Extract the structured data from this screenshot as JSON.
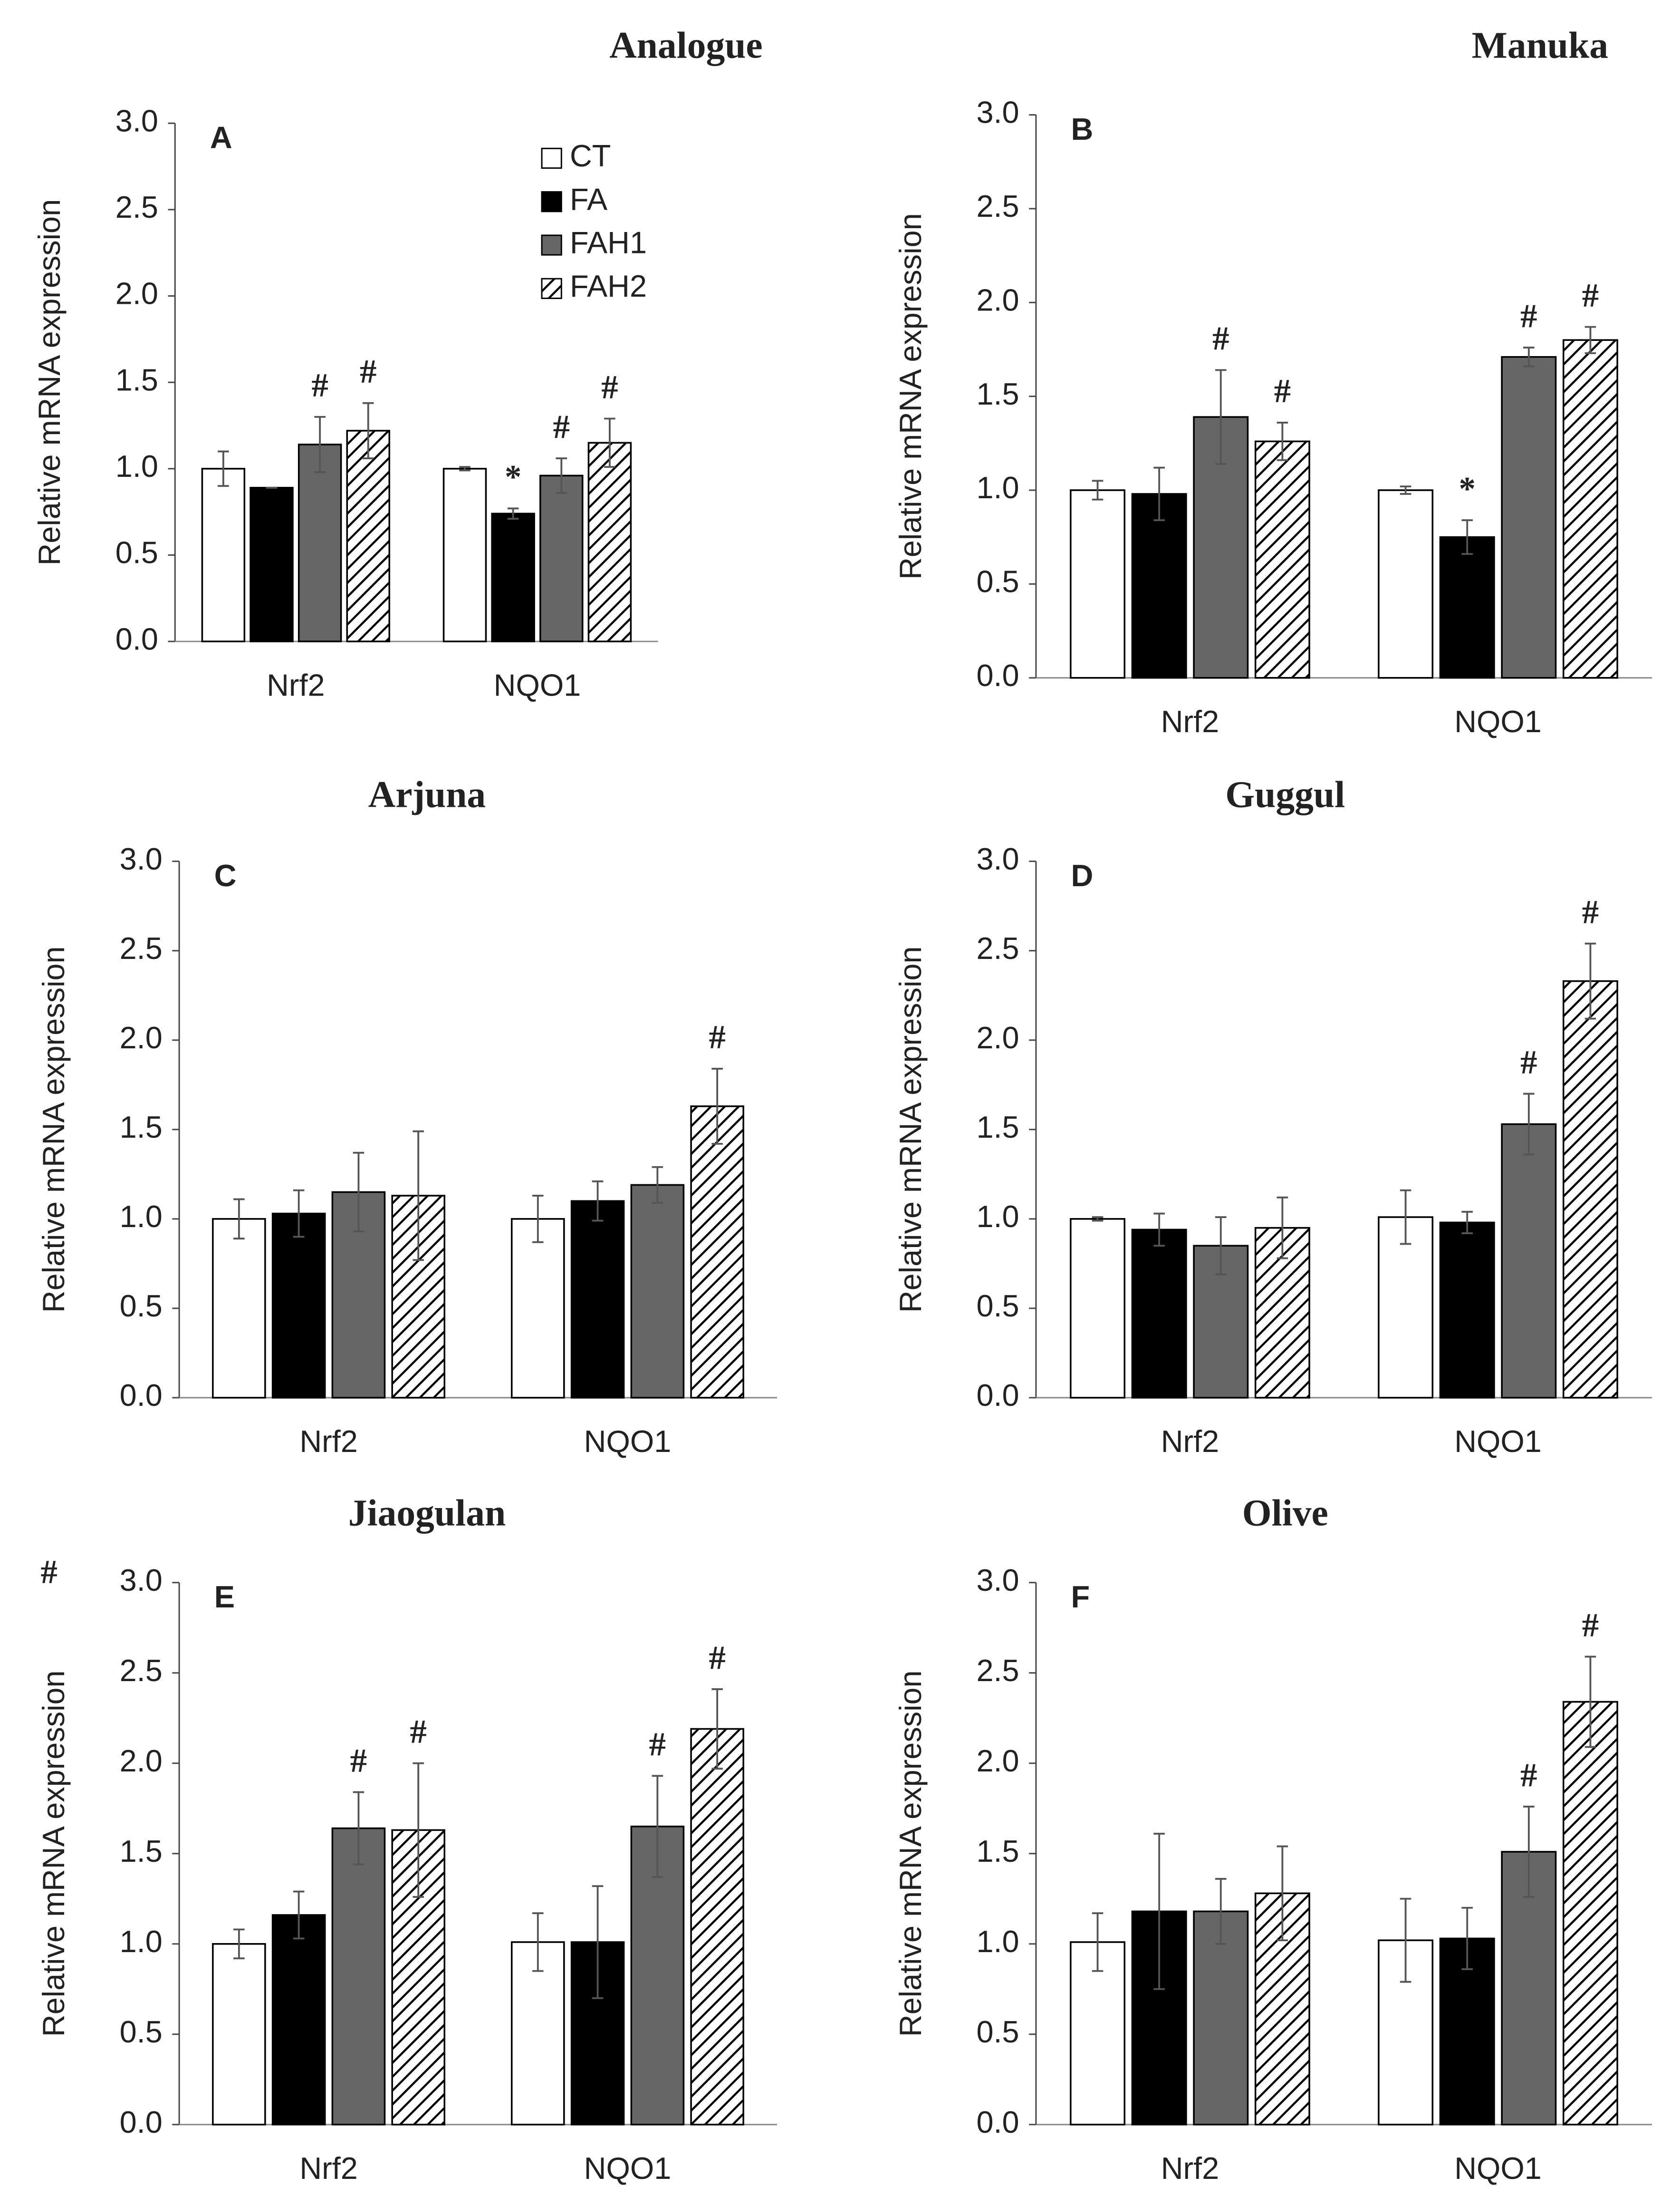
{
  "chart_data": [
    {
      "type": "bar",
      "title": "Analogue",
      "panel": "A",
      "ylabel": "Relative mRNA expression",
      "categories": [
        "Nrf2",
        "NQO1"
      ],
      "ylim": [
        0,
        3
      ],
      "yticks": [
        {
          "value": 0,
          "label": "0.0"
        },
        {
          "value": 0.5,
          "label": "0.5"
        },
        {
          "value": 1,
          "label": "1.0"
        },
        {
          "value": 1.5,
          "label": "1.5"
        },
        {
          "value": 2,
          "label": "2.0"
        },
        {
          "value": 2.5,
          "label": "2.5"
        },
        {
          "value": 3,
          "label": "3.0"
        }
      ],
      "legend": true,
      "series": [
        {
          "name": "CT",
          "color": "#ffffff",
          "values": [
            1.0,
            1.0
          ],
          "errors": [
            0.1,
            0.01
          ],
          "markers": [
            null,
            null
          ]
        },
        {
          "name": "FA",
          "color": "#000000",
          "values": [
            0.89,
            0.74
          ],
          "errors": [
            0,
            0.03
          ],
          "markers": [
            null,
            "*"
          ]
        },
        {
          "name": "FAH1",
          "color": "#666666",
          "values": [
            1.14,
            0.96
          ],
          "errors": [
            0.16,
            0.1
          ],
          "markers": [
            "#",
            "#"
          ]
        },
        {
          "name": "FAH2",
          "color": "#000000",
          "hatch": true,
          "values": [
            1.22,
            1.15
          ],
          "errors": [
            0.16,
            0.14
          ],
          "markers": [
            "#",
            "#"
          ]
        }
      ]
    },
    {
      "type": "bar",
      "title": "Manuka",
      "panel": "B",
      "ylabel": "Relative mRNA expression",
      "categories": [
        "Nrf2",
        "NQO1"
      ],
      "ylim": [
        0,
        3
      ],
      "yticks": [
        {
          "value": 0,
          "label": "0.0"
        },
        {
          "value": 0.5,
          "label": "0.5"
        },
        {
          "value": 1,
          "label": "1.0"
        },
        {
          "value": 1.5,
          "label": "1.5"
        },
        {
          "value": 2,
          "label": "2.0"
        },
        {
          "value": 2.5,
          "label": "2.5"
        },
        {
          "value": 3,
          "label": "3.0"
        }
      ],
      "legend": false,
      "series": [
        {
          "name": "CT",
          "color": "#ffffff",
          "values": [
            1.0,
            1.0
          ],
          "errors": [
            0.05,
            0.02
          ],
          "markers": [
            null,
            null
          ]
        },
        {
          "name": "FA",
          "color": "#000000",
          "values": [
            0.98,
            0.75
          ],
          "errors": [
            0.14,
            0.09
          ],
          "markers": [
            null,
            "*"
          ]
        },
        {
          "name": "FAH1",
          "color": "#666666",
          "values": [
            1.39,
            1.71
          ],
          "errors": [
            0.25,
            0.05
          ],
          "markers": [
            "#",
            "#"
          ]
        },
        {
          "name": "FAH2",
          "color": "#000000",
          "hatch": true,
          "values": [
            1.26,
            1.8
          ],
          "errors": [
            0.1,
            0.07
          ],
          "markers": [
            "#",
            "#"
          ]
        }
      ]
    },
    {
      "type": "bar",
      "title": "Arjuna",
      "panel": "C",
      "ylabel": "Relative mRNA expression",
      "categories": [
        "Nrf2",
        "NQO1"
      ],
      "ylim": [
        0,
        3
      ],
      "yticks": [
        {
          "value": 0,
          "label": "0.0"
        },
        {
          "value": 0.5,
          "label": "0.5"
        },
        {
          "value": 1,
          "label": "1.0"
        },
        {
          "value": 1.5,
          "label": "1.5"
        },
        {
          "value": 2,
          "label": "2.0"
        },
        {
          "value": 2.5,
          "label": "2.5"
        },
        {
          "value": 3,
          "label": "3.0"
        }
      ],
      "legend": false,
      "series": [
        {
          "name": "CT",
          "color": "#ffffff",
          "values": [
            1.0,
            1.0
          ],
          "errors": [
            0.11,
            0.13
          ],
          "markers": [
            null,
            null
          ]
        },
        {
          "name": "FA",
          "color": "#000000",
          "values": [
            1.03,
            1.1
          ],
          "errors": [
            0.13,
            0.11
          ],
          "markers": [
            null,
            null
          ]
        },
        {
          "name": "FAH1",
          "color": "#666666",
          "values": [
            1.15,
            1.19
          ],
          "errors": [
            0.22,
            0.1
          ],
          "markers": [
            null,
            null
          ]
        },
        {
          "name": "FAH2",
          "color": "#000000",
          "hatch": true,
          "values": [
            1.13,
            1.63
          ],
          "errors": [
            0.36,
            0.21
          ],
          "markers": [
            null,
            "#"
          ]
        }
      ]
    },
    {
      "type": "bar",
      "title": "Guggul",
      "panel": "D",
      "ylabel": "Relative mRNA expression",
      "categories": [
        "Nrf2",
        "NQO1"
      ],
      "ylim": [
        0,
        3
      ],
      "yticks": [
        {
          "value": 0,
          "label": "0.0"
        },
        {
          "value": 0.5,
          "label": "0.5"
        },
        {
          "value": 1,
          "label": "1.0"
        },
        {
          "value": 1.5,
          "label": "1.5"
        },
        {
          "value": 2,
          "label": "2.0"
        },
        {
          "value": 2.5,
          "label": "2.5"
        },
        {
          "value": 3,
          "label": "3.0"
        }
      ],
      "legend": false,
      "series": [
        {
          "name": "CT",
          "color": "#ffffff",
          "values": [
            1.0,
            1.01
          ],
          "errors": [
            0.01,
            0.15
          ],
          "markers": [
            null,
            null
          ]
        },
        {
          "name": "FA",
          "color": "#000000",
          "values": [
            0.94,
            0.98
          ],
          "errors": [
            0.09,
            0.06
          ],
          "markers": [
            null,
            null
          ]
        },
        {
          "name": "FAH1",
          "color": "#666666",
          "values": [
            0.85,
            1.53
          ],
          "errors": [
            0.16,
            0.17
          ],
          "markers": [
            null,
            "#"
          ]
        },
        {
          "name": "FAH2",
          "color": "#000000",
          "hatch": true,
          "values": [
            0.95,
            2.33
          ],
          "errors": [
            0.17,
            0.21
          ],
          "markers": [
            null,
            "#"
          ]
        }
      ]
    },
    {
      "type": "bar",
      "title": "Jiaogulan",
      "panel": "E",
      "note": "#",
      "ylabel": "Relative mRNA expression",
      "categories": [
        "Nrf2",
        "NQO1"
      ],
      "ylim": [
        0,
        3
      ],
      "yticks": [
        {
          "value": 0,
          "label": "0.0"
        },
        {
          "value": 0.5,
          "label": "0.5"
        },
        {
          "value": 1,
          "label": "1.0"
        },
        {
          "value": 1.5,
          "label": "1.5"
        },
        {
          "value": 2,
          "label": "2.0"
        },
        {
          "value": 2.5,
          "label": "2.5"
        },
        {
          "value": 3,
          "label": "3.0"
        }
      ],
      "legend": false,
      "series": [
        {
          "name": "CT",
          "color": "#ffffff",
          "values": [
            1.0,
            1.01
          ],
          "errors": [
            0.08,
            0.16
          ],
          "markers": [
            null,
            null
          ]
        },
        {
          "name": "FA",
          "color": "#000000",
          "values": [
            1.16,
            1.01
          ],
          "errors": [
            0.13,
            0.31
          ],
          "markers": [
            null,
            null
          ]
        },
        {
          "name": "FAH1",
          "color": "#666666",
          "values": [
            1.64,
            1.65
          ],
          "errors": [
            0.2,
            0.28
          ],
          "markers": [
            "#",
            "#"
          ]
        },
        {
          "name": "FAH2",
          "color": "#000000",
          "hatch": true,
          "values": [
            1.63,
            2.19
          ],
          "errors": [
            0.37,
            0.22
          ],
          "markers": [
            "#",
            "#"
          ]
        }
      ]
    },
    {
      "type": "bar",
      "title": "Olive",
      "panel": "F",
      "ylabel": "Relative mRNA expression",
      "categories": [
        "Nrf2",
        "NQO1"
      ],
      "ylim": [
        0,
        3
      ],
      "yticks": [
        {
          "value": 0,
          "label": "0.0"
        },
        {
          "value": 0.5,
          "label": "0.5"
        },
        {
          "value": 1,
          "label": "1.0"
        },
        {
          "value": 1.5,
          "label": "1.5"
        },
        {
          "value": 2,
          "label": "2.0"
        },
        {
          "value": 2.5,
          "label": "2.5"
        },
        {
          "value": 3,
          "label": "3.0"
        }
      ],
      "legend": false,
      "series": [
        {
          "name": "CT",
          "color": "#ffffff",
          "values": [
            1.01,
            1.02
          ],
          "errors": [
            0.16,
            0.23
          ],
          "markers": [
            null,
            null
          ]
        },
        {
          "name": "FA",
          "color": "#000000",
          "values": [
            1.18,
            1.03
          ],
          "errors": [
            0.43,
            0.17
          ],
          "markers": [
            null,
            null
          ]
        },
        {
          "name": "FAH1",
          "color": "#666666",
          "values": [
            1.18,
            1.51
          ],
          "errors": [
            0.18,
            0.25
          ],
          "markers": [
            null,
            "#"
          ]
        },
        {
          "name": "FAH2",
          "color": "#000000",
          "hatch": true,
          "values": [
            1.28,
            2.34
          ],
          "errors": [
            0.26,
            0.25
          ],
          "markers": [
            null,
            "#"
          ]
        }
      ]
    }
  ]
}
